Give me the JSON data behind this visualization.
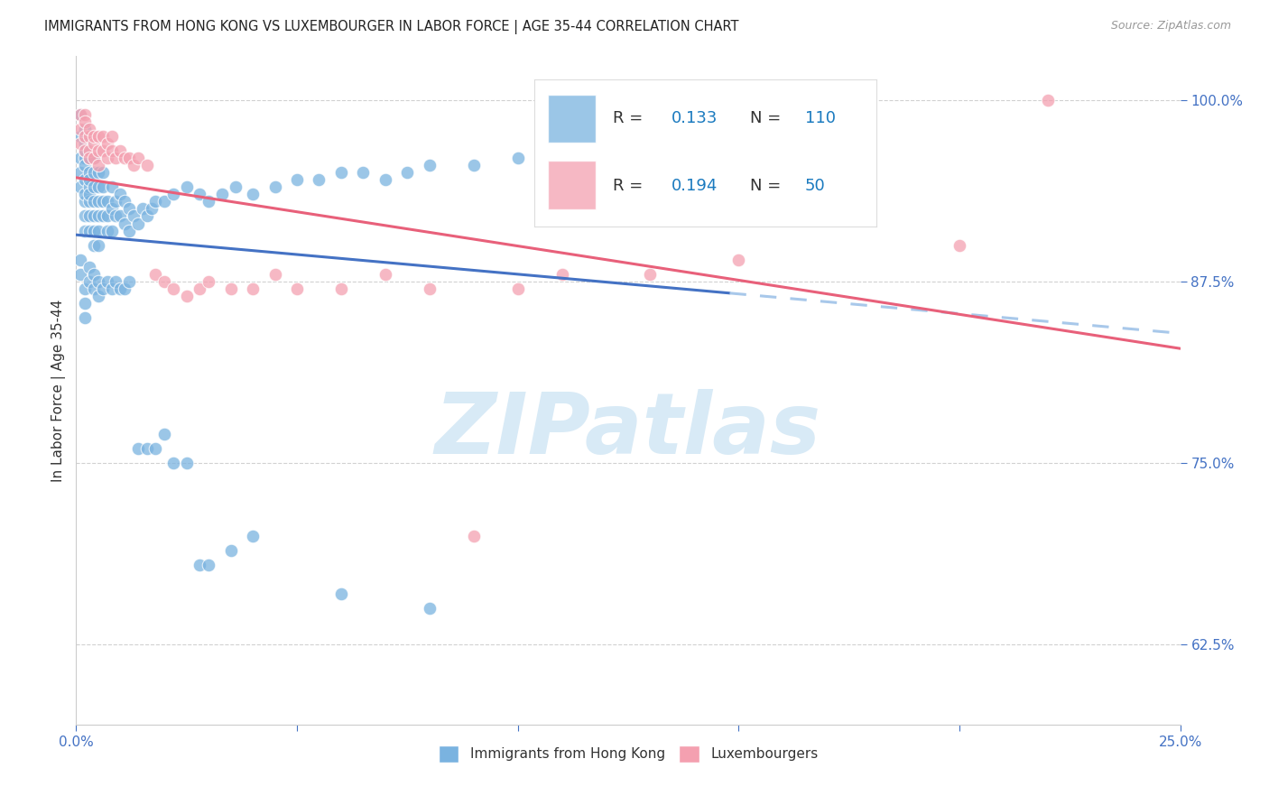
{
  "title": "IMMIGRANTS FROM HONG KONG VS LUXEMBOURGER IN LABOR FORCE | AGE 35-44 CORRELATION CHART",
  "source_text": "Source: ZipAtlas.com",
  "ylabel": "In Labor Force | Age 35-44",
  "xlim": [
    0.0,
    0.25
  ],
  "ylim": [
    0.57,
    1.03
  ],
  "yticks": [
    0.625,
    0.75,
    0.875,
    1.0
  ],
  "ytick_labels": [
    "62.5%",
    "75.0%",
    "87.5%",
    "100.0%"
  ],
  "xticks": [
    0.0,
    0.05,
    0.1,
    0.15,
    0.2,
    0.25
  ],
  "xtick_labels": [
    "0.0%",
    "",
    "",
    "",
    "",
    "25.0%"
  ],
  "blue_color": "#7ab3e0",
  "pink_color": "#f4a0b0",
  "blue_line_color": "#4472c4",
  "pink_line_color": "#e8607a",
  "dashed_line_color": "#a8c8ea",
  "legend_val_color": "#1a7abf",
  "axis_color": "#4472c4",
  "grid_color": "#cccccc",
  "watermark_text": "ZIPatlas",
  "blue_x": [
    0.001,
    0.001,
    0.001,
    0.001,
    0.001,
    0.002,
    0.002,
    0.002,
    0.002,
    0.002,
    0.002,
    0.002,
    0.002,
    0.002,
    0.002,
    0.003,
    0.003,
    0.003,
    0.003,
    0.003,
    0.003,
    0.003,
    0.003,
    0.004,
    0.004,
    0.004,
    0.004,
    0.004,
    0.004,
    0.004,
    0.005,
    0.005,
    0.005,
    0.005,
    0.005,
    0.005,
    0.006,
    0.006,
    0.006,
    0.006,
    0.007,
    0.007,
    0.007,
    0.008,
    0.008,
    0.008,
    0.009,
    0.009,
    0.01,
    0.01,
    0.011,
    0.011,
    0.012,
    0.012,
    0.013,
    0.014,
    0.015,
    0.016,
    0.017,
    0.018,
    0.02,
    0.022,
    0.025,
    0.028,
    0.03,
    0.033,
    0.036,
    0.04,
    0.045,
    0.05,
    0.055,
    0.06,
    0.065,
    0.07,
    0.075,
    0.08,
    0.09,
    0.1,
    0.11,
    0.12,
    0.001,
    0.001,
    0.002,
    0.002,
    0.002,
    0.003,
    0.003,
    0.004,
    0.004,
    0.005,
    0.005,
    0.006,
    0.007,
    0.008,
    0.009,
    0.01,
    0.011,
    0.012,
    0.014,
    0.016,
    0.018,
    0.02,
    0.022,
    0.025,
    0.028,
    0.03,
    0.035,
    0.04,
    0.06,
    0.08
  ],
  "blue_y": [
    0.94,
    0.96,
    0.975,
    0.99,
    0.95,
    0.93,
    0.945,
    0.96,
    0.97,
    0.98,
    0.935,
    0.92,
    0.955,
    0.965,
    0.91,
    0.94,
    0.95,
    0.96,
    0.93,
    0.92,
    0.91,
    0.945,
    0.935,
    0.95,
    0.94,
    0.96,
    0.93,
    0.92,
    0.91,
    0.9,
    0.94,
    0.95,
    0.92,
    0.91,
    0.93,
    0.9,
    0.94,
    0.93,
    0.92,
    0.95,
    0.93,
    0.92,
    0.91,
    0.94,
    0.925,
    0.91,
    0.93,
    0.92,
    0.935,
    0.92,
    0.93,
    0.915,
    0.925,
    0.91,
    0.92,
    0.915,
    0.925,
    0.92,
    0.925,
    0.93,
    0.93,
    0.935,
    0.94,
    0.935,
    0.93,
    0.935,
    0.94,
    0.935,
    0.94,
    0.945,
    0.945,
    0.95,
    0.95,
    0.945,
    0.95,
    0.955,
    0.955,
    0.96,
    0.96,
    0.965,
    0.89,
    0.88,
    0.87,
    0.86,
    0.85,
    0.885,
    0.875,
    0.88,
    0.87,
    0.875,
    0.865,
    0.87,
    0.875,
    0.87,
    0.875,
    0.87,
    0.87,
    0.875,
    0.76,
    0.76,
    0.76,
    0.77,
    0.75,
    0.75,
    0.68,
    0.68,
    0.69,
    0.7,
    0.66,
    0.65
  ],
  "pink_x": [
    0.001,
    0.001,
    0.001,
    0.002,
    0.002,
    0.002,
    0.002,
    0.003,
    0.003,
    0.003,
    0.003,
    0.004,
    0.004,
    0.004,
    0.005,
    0.005,
    0.005,
    0.006,
    0.006,
    0.007,
    0.007,
    0.008,
    0.008,
    0.009,
    0.01,
    0.011,
    0.012,
    0.013,
    0.014,
    0.016,
    0.018,
    0.02,
    0.022,
    0.025,
    0.028,
    0.03,
    0.035,
    0.04,
    0.045,
    0.05,
    0.06,
    0.07,
    0.08,
    0.09,
    0.1,
    0.11,
    0.13,
    0.15,
    0.2,
    0.22
  ],
  "pink_y": [
    0.99,
    0.98,
    0.97,
    0.99,
    0.975,
    0.965,
    0.985,
    0.975,
    0.965,
    0.98,
    0.96,
    0.97,
    0.96,
    0.975,
    0.965,
    0.975,
    0.955,
    0.965,
    0.975,
    0.97,
    0.96,
    0.965,
    0.975,
    0.96,
    0.965,
    0.96,
    0.96,
    0.955,
    0.96,
    0.955,
    0.88,
    0.875,
    0.87,
    0.865,
    0.87,
    0.875,
    0.87,
    0.87,
    0.88,
    0.87,
    0.87,
    0.88,
    0.87,
    0.7,
    0.87,
    0.88,
    0.88,
    0.89,
    0.9,
    1.0
  ],
  "blue_solid_xlim": [
    0.0,
    0.148
  ],
  "blue_dashed_xlim": [
    0.148,
    0.25
  ]
}
